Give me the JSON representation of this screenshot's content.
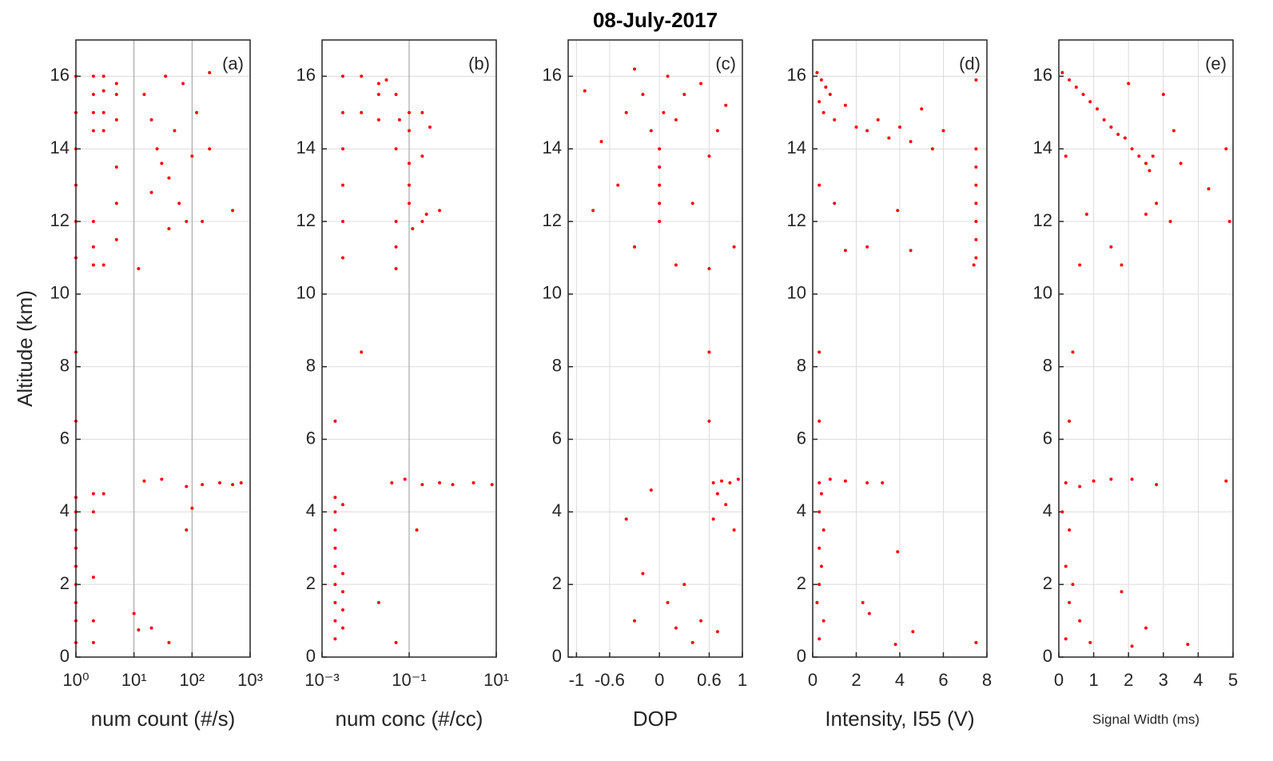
{
  "title": "08-July-2017",
  "chart_data": [
    {
      "type": "scatter",
      "panel_label": "(a)",
      "xlabel": "num count (#/s)",
      "ylabel": "Altitude (km)",
      "color": "#ff0000",
      "grid": true,
      "xscale": "log",
      "xlim": [
        1,
        1000
      ],
      "ylim": [
        0,
        17
      ],
      "xticks": [
        {
          "value": 1,
          "label": "10⁰"
        },
        {
          "value": 10,
          "label": "10¹"
        },
        {
          "value": 100,
          "label": "10²"
        },
        {
          "value": 1000,
          "label": "10³"
        }
      ],
      "yticks": [
        0,
        2,
        4,
        6,
        8,
        10,
        12,
        14,
        16
      ],
      "x": [
        1,
        1,
        1,
        1,
        1,
        1,
        1,
        1,
        1,
        1,
        1,
        1,
        1,
        1,
        1,
        1,
        1,
        2,
        2,
        2,
        2,
        2,
        2,
        2,
        2,
        2,
        2,
        2,
        2,
        3,
        3,
        3,
        3,
        3,
        3,
        5,
        5,
        5,
        5,
        5,
        5,
        15,
        20,
        25,
        30,
        40,
        50,
        60,
        80,
        100,
        120,
        150,
        40,
        20,
        12,
        70,
        35,
        200,
        15,
        30,
        80,
        150,
        300,
        500,
        700,
        100,
        80,
        40,
        10,
        12,
        20,
        500,
        200
      ],
      "y": [
        0.4,
        1,
        1.5,
        2,
        2.5,
        3,
        3.5,
        4,
        4.4,
        6.5,
        8.4,
        11,
        12,
        13,
        14,
        15,
        16,
        16,
        15.5,
        15,
        14.5,
        12,
        11.3,
        10.8,
        4.5,
        4,
        2.2,
        1,
        0.4,
        16,
        15.6,
        15,
        14.5,
        10.8,
        4.5,
        15.8,
        15.5,
        14.8,
        13.5,
        12.5,
        11.5,
        15.5,
        14.8,
        14,
        13.6,
        13.2,
        14.5,
        12.5,
        12,
        13.8,
        15,
        12,
        11.8,
        12.8,
        10.7,
        15.8,
        16,
        14,
        4.85,
        4.9,
        4.7,
        4.75,
        4.8,
        4.75,
        4.8,
        4.1,
        3.5,
        0.4,
        1.2,
        0.75,
        0.8,
        12.3,
        16.1
      ]
    },
    {
      "type": "scatter",
      "panel_label": "(b)",
      "xlabel": "num conc (#/cc)",
      "color": "#ff0000",
      "grid": true,
      "xscale": "log",
      "xlim": [
        0.001,
        10
      ],
      "ylim": [
        0,
        17
      ],
      "xticks": [
        {
          "value": 0.001,
          "label": "10⁻³"
        },
        {
          "value": 0.1,
          "label": "10⁻¹"
        },
        {
          "value": 10,
          "label": "10¹"
        }
      ],
      "yticks": [
        0,
        2,
        4,
        6,
        8,
        10,
        12,
        14,
        16
      ],
      "x": [
        0.002,
        0.002,
        0.002,
        0.002,
        0.002,
        0.002,
        0.002,
        0.002,
        0.002,
        0.002,
        0.003,
        0.003,
        0.003,
        0.003,
        0.003,
        0.003,
        0.003,
        0.003,
        0.003,
        0.003,
        0.003,
        0.008,
        0.008,
        0.008,
        0.02,
        0.02,
        0.02,
        0.02,
        0.05,
        0.05,
        0.05,
        0.05,
        0.05,
        0.05,
        0.1,
        0.1,
        0.1,
        0.1,
        0.1,
        0.2,
        0.2,
        0.2,
        0.2,
        0.5,
        0.5,
        1,
        3,
        8,
        0.04,
        0.08,
        0.15,
        0.06,
        0.12,
        0.25,
        0.3,
        0.03
      ],
      "y": [
        0.5,
        1,
        1.5,
        2,
        2.5,
        3,
        3.5,
        4,
        4.4,
        6.5,
        0.8,
        1.3,
        1.8,
        2.3,
        4.2,
        11,
        12,
        13,
        14,
        15,
        16,
        8.4,
        16,
        15,
        15.8,
        15.5,
        14.8,
        1.5,
        15.5,
        14,
        12,
        11.3,
        10.7,
        0.4,
        13.6,
        14.5,
        12.5,
        15,
        13,
        12,
        13.8,
        15,
        4.75,
        4.8,
        12.3,
        4.75,
        4.8,
        4.75,
        4.8,
        4.9,
        3.5,
        14.8,
        11.8,
        12.2,
        14.6,
        15.9
      ]
    },
    {
      "type": "scatter",
      "panel_label": "(c)",
      "xlabel": "DOP",
      "color": "#ff0000",
      "grid": true,
      "xlim": [
        -1.1,
        1
      ],
      "ylim": [
        0,
        17
      ],
      "xticks": [
        -1,
        -0.6,
        0,
        0.6,
        1
      ],
      "yticks": [
        0,
        2,
        4,
        6,
        8,
        10,
        12,
        14,
        16
      ],
      "x": [
        -0.9,
        -0.7,
        -0.5,
        -0.4,
        -0.3,
        -0.2,
        -0.1,
        0,
        0,
        0,
        0,
        0,
        0.05,
        0.1,
        0.2,
        0.3,
        0.4,
        0.5,
        0.6,
        0.7,
        0.8,
        0.9,
        -0.3,
        0.2,
        0.6,
        -0.8,
        0.65,
        0.75,
        0.85,
        0.95,
        0.7,
        0.8,
        0.65,
        0.9,
        -0.1,
        -0.2,
        0.1,
        0.3,
        0.5,
        0.7,
        0.4,
        -0.3,
        0.6,
        0.6,
        0.2,
        -0.4
      ],
      "y": [
        15.6,
        14.2,
        13,
        15,
        16.2,
        15.5,
        14.5,
        14,
        13.5,
        13,
        12.5,
        12,
        15,
        16,
        14.8,
        15.5,
        12.5,
        15.8,
        13.8,
        14.5,
        15.2,
        11.3,
        11.3,
        10.8,
        10.7,
        12.3,
        4.8,
        4.85,
        4.8,
        4.9,
        4.5,
        4.2,
        3.8,
        3.5,
        4.6,
        2.3,
        1.5,
        2,
        1,
        0.7,
        0.4,
        1,
        8.4,
        6.5,
        0.8,
        3.8
      ]
    },
    {
      "type": "scatter",
      "panel_label": "(d)",
      "xlabel": "Intensity, I55 (V)",
      "color": "#ff0000",
      "grid": true,
      "xlim": [
        0,
        8
      ],
      "ylim": [
        0,
        17
      ],
      "xticks": [
        0,
        2,
        4,
        6,
        8
      ],
      "yticks": [
        0,
        2,
        4,
        6,
        8,
        10,
        12,
        14,
        16
      ],
      "x": [
        0.2,
        0.4,
        0.6,
        0.8,
        0.3,
        0.5,
        1,
        1.5,
        2,
        2.5,
        3,
        3.5,
        4,
        4.5,
        5,
        5.5,
        6,
        0.3,
        1,
        1.5,
        2.5,
        3.9,
        4.5,
        7.5,
        7.5,
        7.5,
        7.5,
        7.5,
        7.5,
        7.5,
        7.4,
        7.5,
        0.3,
        0.3,
        0.3,
        0.4,
        0.3,
        0.5,
        0.3,
        0.4,
        0.3,
        0.2,
        0.5,
        0.3,
        0.8,
        1.5,
        2.5,
        3.2,
        3.9,
        2.3,
        2.6,
        4.6,
        7.5,
        3.8
      ],
      "y": [
        16.1,
        15.9,
        15.7,
        15.5,
        15.3,
        15,
        14.8,
        15.2,
        14.6,
        14.5,
        14.8,
        14.3,
        14.6,
        14.2,
        15.1,
        14,
        14.5,
        13,
        12.5,
        11.2,
        11.3,
        12.3,
        11.2,
        14,
        13.5,
        13,
        12.5,
        12,
        11.5,
        11,
        10.8,
        15.9,
        8.4,
        6.5,
        4.8,
        4.5,
        4,
        3.5,
        3,
        2.5,
        2,
        1.5,
        1,
        0.5,
        4.9,
        4.85,
        4.8,
        4.8,
        2.9,
        1.5,
        1.2,
        0.7,
        0.4,
        0.35
      ]
    },
    {
      "type": "scatter",
      "panel_label": "(e)",
      "xlabel": "Signal Width (ms)",
      "color": "#ff0000",
      "grid": true,
      "xlim": [
        0,
        5
      ],
      "ylim": [
        0,
        17
      ],
      "xticks": [
        0,
        1,
        2,
        3,
        4,
        5
      ],
      "yticks": [
        0,
        2,
        4,
        6,
        8,
        10,
        12,
        14,
        16
      ],
      "x": [
        0.1,
        0.3,
        0.5,
        0.7,
        0.9,
        1.1,
        1.3,
        1.5,
        1.7,
        1.9,
        2.1,
        2.3,
        2.5,
        2.6,
        2.7,
        2,
        3,
        3.3,
        3.5,
        2.8,
        3.2,
        2.5,
        1.5,
        1.8,
        0.6,
        0.2,
        0.8,
        4.8,
        4.9,
        4.3,
        0.4,
        0.3,
        0.2,
        0.6,
        1,
        1.5,
        2.1,
        2.8,
        4.8,
        0.1,
        0.3,
        0.2,
        0.4,
        0.3,
        0.6,
        0.2,
        0.9,
        1.8,
        2.5,
        3.7,
        2.1
      ],
      "y": [
        16.1,
        15.9,
        15.7,
        15.5,
        15.3,
        15.1,
        14.8,
        14.6,
        14.4,
        14.3,
        14,
        13.8,
        13.6,
        13.4,
        13.8,
        15.8,
        15.5,
        14.5,
        13.6,
        12.5,
        12,
        12.2,
        11.3,
        10.8,
        10.8,
        13.8,
        12.2,
        14,
        12,
        12.9,
        8.4,
        6.5,
        4.8,
        4.7,
        4.85,
        4.9,
        4.9,
        4.75,
        4.85,
        4,
        3.5,
        2.5,
        2,
        1.5,
        1,
        0.5,
        0.4,
        1.8,
        0.8,
        0.35,
        0.3
      ]
    }
  ]
}
